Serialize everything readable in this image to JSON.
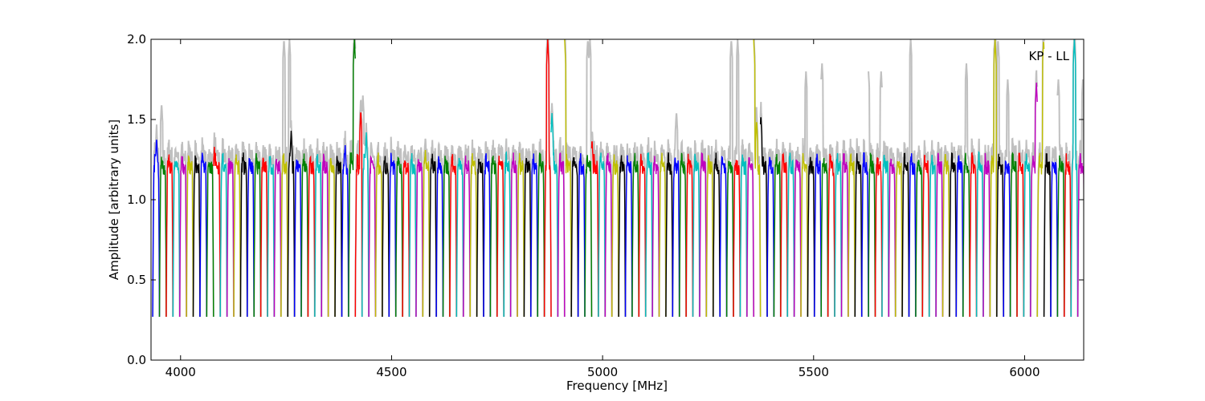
{
  "chart_data": {
    "type": "line",
    "title": "",
    "annotation": "KP - LL",
    "xlabel": "Frequency [MHz]",
    "ylabel": "Amplitude [arbitrary units]",
    "xlim": [
      3930,
      6140
    ],
    "ylim": [
      0.0,
      2.0
    ],
    "xticks": [
      4000,
      4500,
      5000,
      5500,
      6000
    ],
    "yticks": [
      0.0,
      0.5,
      1.0,
      1.5,
      2.0
    ],
    "xtick_labels": [
      "4000",
      "4500",
      "5000",
      "5500",
      "6000"
    ],
    "ytick_labels": [
      "0.0",
      "0.5",
      "1.0",
      "1.5",
      "2.0"
    ],
    "grid": false,
    "legend": "none",
    "series_colors": [
      "#0000ff",
      "#008000",
      "#ff0000",
      "#00bfbf",
      "#bf00bf",
      "#bfbf00",
      "#000000"
    ],
    "background_color": "#c0c0c0",
    "channel_width_mhz": 16,
    "channel_start_mhz": 3934,
    "channel_count": 138,
    "channel_shape": {
      "edge_min": 0.27,
      "plateau": 1.2
    },
    "channel_peaks": [
      {
        "x": 3943,
        "y": 1.39
      },
      {
        "x": 4080,
        "y": 1.33
      },
      {
        "x": 4262,
        "y": 1.43
      },
      {
        "x": 4390,
        "y": 1.34
      },
      {
        "x": 4412,
        "y": 2.0
      },
      {
        "x": 4427,
        "y": 1.56
      },
      {
        "x": 4440,
        "y": 1.42
      },
      {
        "x": 4580,
        "y": 1.31
      },
      {
        "x": 4870,
        "y": 2.0
      },
      {
        "x": 4880,
        "y": 1.54
      },
      {
        "x": 4910,
        "y": 2.0
      },
      {
        "x": 4975,
        "y": 1.38
      },
      {
        "x": 5358,
        "y": 2.0
      },
      {
        "x": 5365,
        "y": 1.5
      },
      {
        "x": 5375,
        "y": 1.53
      },
      {
        "x": 5930,
        "y": 2.0
      },
      {
        "x": 6028,
        "y": 1.73
      },
      {
        "x": 6045,
        "y": 2.0
      },
      {
        "x": 6118,
        "y": 2.0
      }
    ],
    "rfi_background_spikes": [
      {
        "x": 3955,
        "y": 1.6
      },
      {
        "x": 4245,
        "y": 2.0
      },
      {
        "x": 4258,
        "y": 2.0
      },
      {
        "x": 4432,
        "y": 1.65
      },
      {
        "x": 4965,
        "y": 2.0
      },
      {
        "x": 4970,
        "y": 2.0
      },
      {
        "x": 5175,
        "y": 1.55
      },
      {
        "x": 5305,
        "y": 2.0
      },
      {
        "x": 5320,
        "y": 2.0
      },
      {
        "x": 5482,
        "y": 1.8
      },
      {
        "x": 5520,
        "y": 1.85
      },
      {
        "x": 5630,
        "y": 1.8
      },
      {
        "x": 5660,
        "y": 1.8
      },
      {
        "x": 5730,
        "y": 2.0
      },
      {
        "x": 5862,
        "y": 1.85
      },
      {
        "x": 5937,
        "y": 2.0
      },
      {
        "x": 5960,
        "y": 1.75
      },
      {
        "x": 6080,
        "y": 1.75
      },
      {
        "x": 6138,
        "y": 1.75
      }
    ]
  }
}
